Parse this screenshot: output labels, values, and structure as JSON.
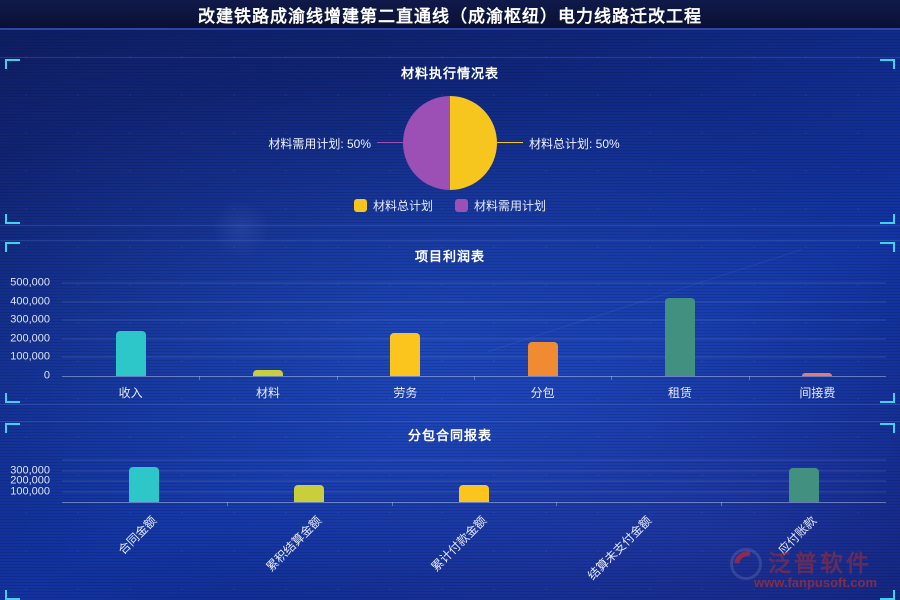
{
  "header": {
    "title": "改建铁路成渝线增建第二直通线（成渝枢纽）电力线路迁改工程"
  },
  "watermark": {
    "brand": "泛普软件",
    "site": "www.fanpusoft.com"
  },
  "accent_colors": {
    "bracket": "#3fd2ea",
    "header_line": "#2b46ad"
  },
  "chart_data": [
    {
      "type": "pie",
      "title": "材料执行情况表",
      "slices": [
        {
          "label": "材料总计划",
          "value": 50,
          "color": "#F6C51E",
          "callout": "材料总计划: 50%"
        },
        {
          "label": "材料需用计划",
          "value": 50,
          "color": "#9C50B5",
          "callout": "材料需用计划: 50%"
        }
      ],
      "legend_position": "bottom"
    },
    {
      "type": "bar",
      "title": "项目利润表",
      "categories": [
        "收入",
        "材料",
        "劳务",
        "分包",
        "租赁",
        "间接费"
      ],
      "values": [
        240000,
        30000,
        230000,
        185000,
        420000,
        15000
      ],
      "colors": [
        "#2EC7C9",
        "#C9CE3B",
        "#FCC51D",
        "#F08A33",
        "#42907F",
        "#E97B6C"
      ],
      "ylim": [
        0,
        500000
      ],
      "grid_step": 100000,
      "yticks": [
        500000,
        400000,
        300000,
        200000,
        100000,
        0
      ],
      "grid": true,
      "xlabel_rotation": 0
    },
    {
      "type": "bar",
      "title": "分包合同报表",
      "categories": [
        "合同金额",
        "累积结算金额",
        "累计付款金额",
        "结算未支付金额",
        "应付账款"
      ],
      "values": [
        330000,
        165000,
        160000,
        0,
        325000
      ],
      "colors": [
        "#2EC7C9",
        "#C9CE3B",
        "#FCC51D",
        "#F08A33",
        "#42907F"
      ],
      "ylim": [
        0,
        400000
      ],
      "grid_step": 100000,
      "yticks": [
        300000,
        200000,
        100000
      ],
      "grid": true,
      "xlabel_rotation": -45
    }
  ]
}
